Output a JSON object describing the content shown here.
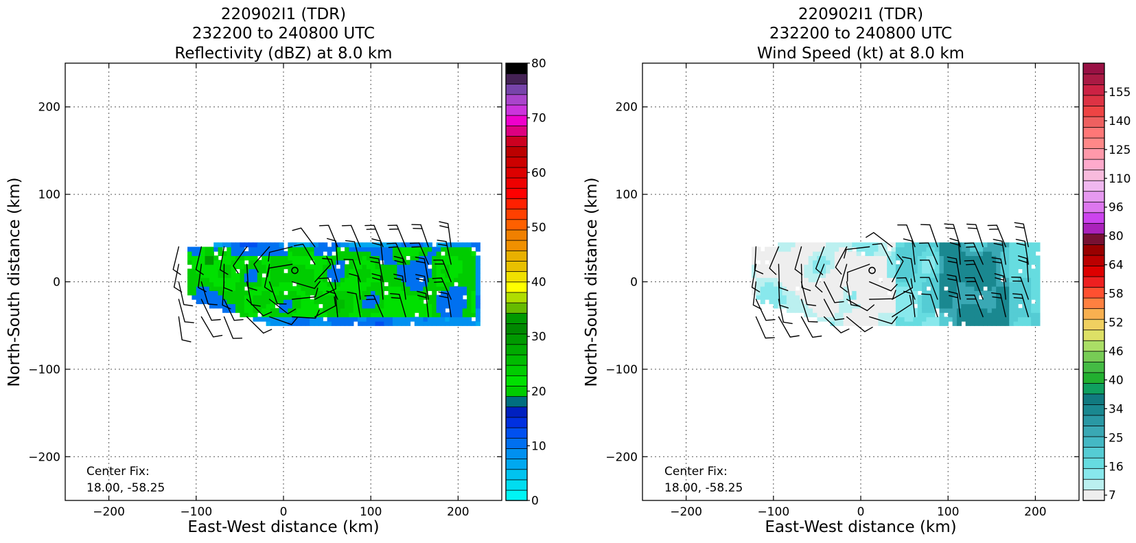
{
  "chart_data": [
    {
      "type": "heatmap",
      "title_lines": [
        "220902I1 (TDR)",
        "232200 to 240800 UTC",
        "Reflectivity (dBZ) at 8.0 km"
      ],
      "xlabel": "East-West distance (km)",
      "ylabel": "North-South distance (km)",
      "xlim": [
        -250,
        250
      ],
      "ylim": [
        -250,
        250
      ],
      "xticks": [
        -200,
        -100,
        0,
        100,
        200
      ],
      "yticks": [
        -200,
        -100,
        0,
        100,
        200
      ],
      "grid": true,
      "annotation_lines": [
        "Center Fix:",
        "18.00, -58.25"
      ],
      "center_marker": [
        13,
        13
      ],
      "field": "reflectivity",
      "colorbar": {
        "min": 0,
        "max": 80,
        "labels": [
          0,
          10,
          20,
          30,
          40,
          50,
          60,
          70,
          80
        ],
        "colors": [
          "#00f5f5",
          "#00ddf0",
          "#00c3f0",
          "#00a8f0",
          "#0090f0",
          "#0070f0",
          "#0050f0",
          "#0030e0",
          "#0020c0",
          "#006e80",
          "#00cc00",
          "#00e000",
          "#00cc00",
          "#00bb00",
          "#00aa00",
          "#009900",
          "#008800",
          "#009900",
          "#66bb00",
          "#b0dd00",
          "#ffff00",
          "#f0e000",
          "#e8c000",
          "#e8b000",
          "#f09000",
          "#f08000",
          "#ff6000",
          "#ff4000",
          "#ff2000",
          "#ff0000",
          "#ee0000",
          "#dd0000",
          "#cc0000",
          "#bb0000",
          "#cc0020",
          "#dd0080",
          "#ee00cc",
          "#cc33dd",
          "#aa44cc",
          "#7744aa",
          "#442255",
          "#000000"
        ]
      },
      "data_extent": {
        "x": [
          -110,
          225
        ],
        "y": [
          -50,
          45
        ]
      }
    },
    {
      "type": "heatmap",
      "title_lines": [
        "220902I1 (TDR)",
        "232200 to 240800 UTC",
        "Wind Speed (kt) at 8.0 km"
      ],
      "xlabel": "East-West distance (km)",
      "ylabel": "North-South distance (km)",
      "xlim": [
        -250,
        250
      ],
      "ylim": [
        -250,
        250
      ],
      "xticks": [
        -200,
        -100,
        0,
        100,
        200
      ],
      "yticks": [
        -200,
        -100,
        0,
        100,
        200
      ],
      "grid": true,
      "annotation_lines": [
        "Center Fix:",
        "18.00, -58.25"
      ],
      "center_marker": [
        13,
        13
      ],
      "field": "wind_speed",
      "colorbar": {
        "labels": [
          7,
          16,
          25,
          34,
          40,
          46,
          52,
          58,
          64,
          80,
          96,
          110,
          125,
          140,
          155
        ],
        "colors": [
          "#eeeeee",
          "#bbf0f0",
          "#88e8ec",
          "#66dce0",
          "#55ccd4",
          "#44b8c4",
          "#3aa8b4",
          "#2a98a4",
          "#1a8890",
          "#117a80",
          "#10a060",
          "#22b030",
          "#44bb44",
          "#77cc55",
          "#aade66",
          "#dde066",
          "#f0d060",
          "#f8b050",
          "#ff8040",
          "#ff5030",
          "#ee2020",
          "#dd0000",
          "#bb0000",
          "#990000",
          "#771133",
          "#aa22bb",
          "#cc44ee",
          "#dd77ee",
          "#e699f0",
          "#f0b8f0",
          "#f8bbdd",
          "#ffaacc",
          "#ff99aa",
          "#ff8888",
          "#ff7777",
          "#ee6060",
          "#ee4444",
          "#dd3344",
          "#cc2244",
          "#aa1a44",
          "#991144"
        ]
      },
      "data_extent": {
        "x": [
          -125,
          205
        ],
        "y": [
          -50,
          45
        ]
      }
    }
  ]
}
